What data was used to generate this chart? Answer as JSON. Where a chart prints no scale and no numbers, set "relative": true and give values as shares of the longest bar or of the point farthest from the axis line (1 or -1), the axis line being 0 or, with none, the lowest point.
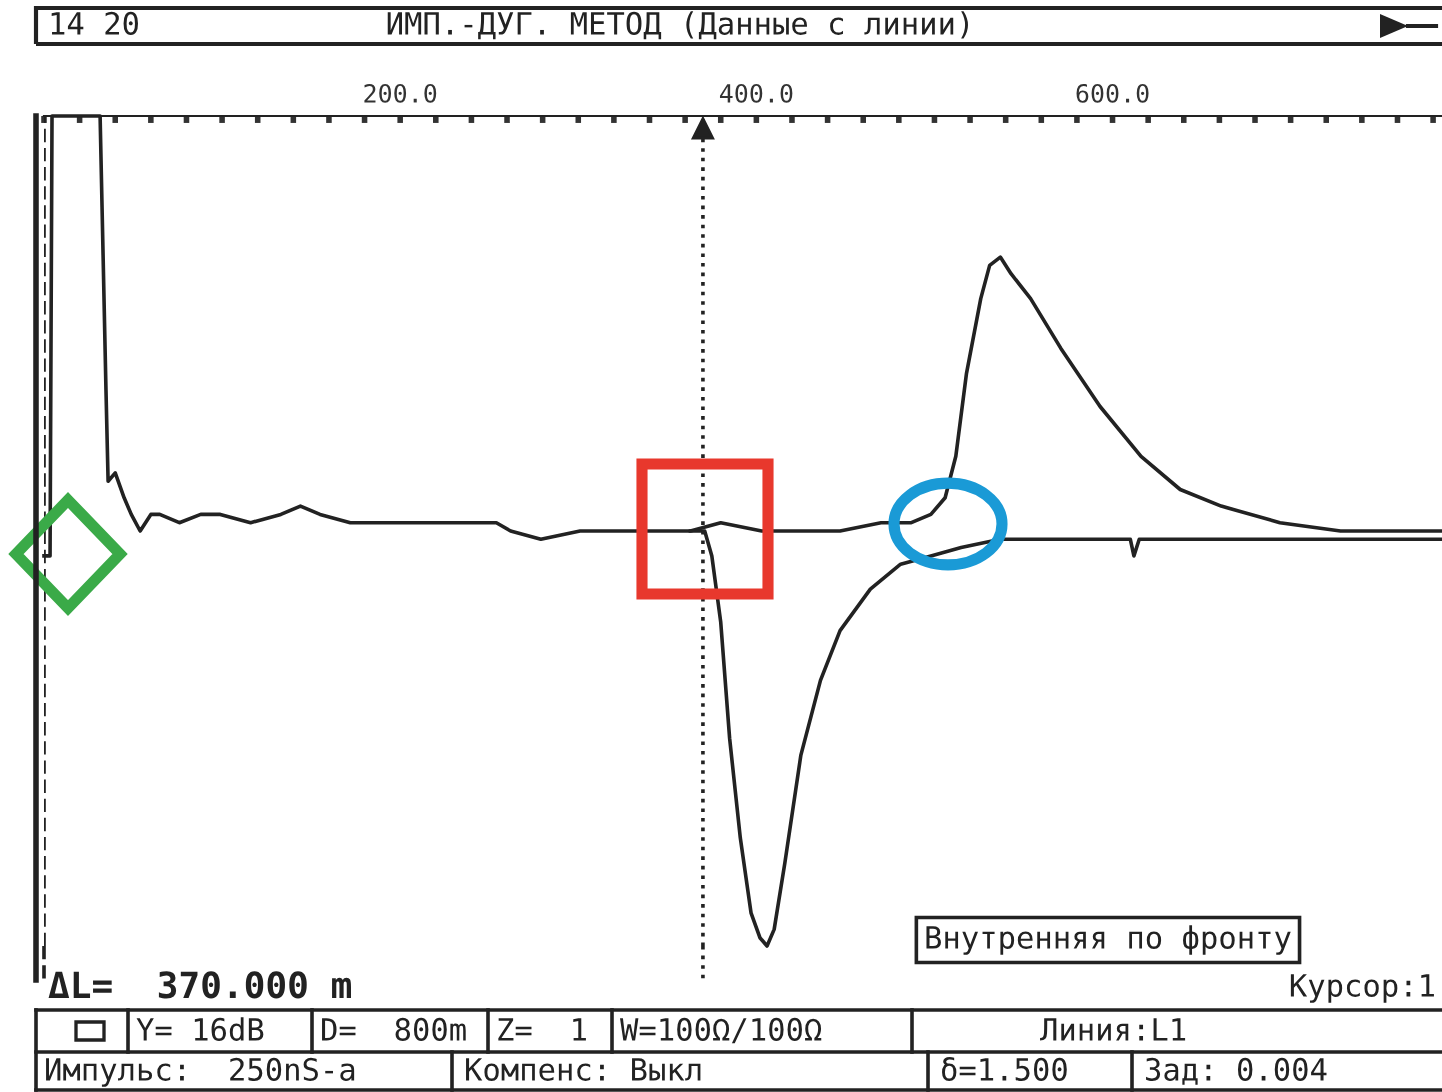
{
  "chart_data": {
    "type": "line",
    "title": "ИМП.-ДУГ. МЕТОД (Данные с линии)",
    "relative": true,
    "legend": false,
    "grid": false,
    "marker": "none",
    "line_style": "solid",
    "tick_labels": "x",
    "xlim": [
      0,
      785
    ],
    "xticks": [
      {
        "value": 0,
        "label": null
      },
      {
        "value": 20,
        "label": null
      },
      {
        "value": 40,
        "label": null
      },
      {
        "value": 60,
        "label": null
      },
      {
        "value": 80,
        "label": null
      },
      {
        "value": 100,
        "label": null
      },
      {
        "value": 120,
        "label": null
      },
      {
        "value": 140,
        "label": null
      },
      {
        "value": 160,
        "label": null
      },
      {
        "value": 180,
        "label": null
      },
      {
        "value": 200,
        "label": "200.0"
      },
      {
        "value": 220,
        "label": null
      },
      {
        "value": 240,
        "label": null
      },
      {
        "value": 260,
        "label": null
      },
      {
        "value": 280,
        "label": null
      },
      {
        "value": 300,
        "label": null
      },
      {
        "value": 320,
        "label": null
      },
      {
        "value": 340,
        "label": null
      },
      {
        "value": 360,
        "label": null
      },
      {
        "value": 380,
        "label": null
      },
      {
        "value": 400,
        "label": "400.0"
      },
      {
        "value": 420,
        "label": null
      },
      {
        "value": 440,
        "label": null
      },
      {
        "value": 460,
        "label": null
      },
      {
        "value": 480,
        "label": null
      },
      {
        "value": 500,
        "label": null
      },
      {
        "value": 520,
        "label": null
      },
      {
        "value": 540,
        "label": null
      },
      {
        "value": 560,
        "label": null
      },
      {
        "value": 580,
        "label": null
      },
      {
        "value": 600,
        "label": "600.0"
      },
      {
        "value": 620,
        "label": null
      },
      {
        "value": 640,
        "label": null
      },
      {
        "value": 660,
        "label": null
      },
      {
        "value": 680,
        "label": null
      },
      {
        "value": 700,
        "label": null
      },
      {
        "value": 720,
        "label": null
      },
      {
        "value": 740,
        "label": null
      },
      {
        "value": 760,
        "label": null
      },
      {
        "value": 780,
        "label": null
      }
    ],
    "series": [
      {
        "color": "#222222",
        "x": [
          0,
          3.4,
          4.5,
          31.5,
          32.6,
          34.8,
          36,
          40,
          45,
          49,
          54,
          60,
          65,
          76,
          88,
          99,
          116,
          133,
          144,
          155,
          172,
          200,
          234,
          254,
          262,
          279,
          301,
          324,
          346,
          363,
          380,
          403,
          425,
          447,
          470,
          487,
          498,
          506,
          512,
          518,
          526,
          531,
          537,
          543,
          554,
          571,
          593,
          616,
          638,
          661,
          694,
          728,
          762,
          785
        ],
        "values": [
          0.47,
          0.47,
          1.0,
          1.0,
          0.89,
          0.67,
          0.56,
          0.57,
          0.54,
          0.52,
          0.5,
          0.52,
          0.52,
          0.51,
          0.52,
          0.52,
          0.51,
          0.52,
          0.53,
          0.52,
          0.51,
          0.51,
          0.51,
          0.51,
          0.5,
          0.49,
          0.5,
          0.5,
          0.5,
          0.5,
          0.51,
          0.5,
          0.5,
          0.5,
          0.51,
          0.51,
          0.52,
          0.54,
          0.59,
          0.69,
          0.78,
          0.82,
          0.83,
          0.81,
          0.78,
          0.72,
          0.65,
          0.59,
          0.55,
          0.53,
          0.51,
          0.5,
          0.5,
          0.5
        ]
      },
      {
        "color": "#222222",
        "x": [
          363,
          371,
          375,
          380,
          385,
          391,
          397,
          402,
          406,
          410,
          416,
          425,
          436,
          447,
          464,
          481,
          498,
          515,
          537,
          560,
          610,
          612,
          615,
          649,
          706,
          785
        ],
        "values": [
          0.5,
          0.5,
          0.47,
          0.39,
          0.25,
          0.13,
          0.04,
          0.01,
          0.0,
          0.02,
          0.1,
          0.23,
          0.32,
          0.38,
          0.43,
          0.46,
          0.47,
          0.48,
          0.49,
          0.49,
          0.49,
          0.47,
          0.49,
          0.49,
          0.49,
          0.49
        ]
      }
    ],
    "ref_lines": [
      {
        "axis": "x",
        "value": 0,
        "line_style": "dashed"
      },
      {
        "axis": "x",
        "value": 370,
        "line_style": "dotted"
      }
    ],
    "annotations": [
      "14 20",
      "ΔL=  370.000 m",
      "Курсор:1",
      "Внутренняя по фронту",
      "Y= 16dB",
      "D=  800m",
      "Z=  1",
      "W=100Ω/100Ω",
      "Линия:L1",
      "Импульс:  250nS-a",
      "Компенс: Выкл",
      "δ=1.500",
      "Зад: 0.004"
    ]
  }
}
